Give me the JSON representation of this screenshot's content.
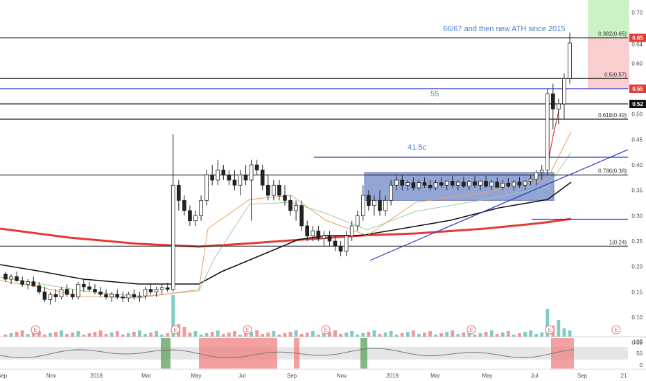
{
  "chart_data": {
    "type": "candlestick",
    "title": "",
    "ylim": [
      0.05,
      0.72
    ],
    "y_ticks": [
      "0.70",
      "0.65",
      "0.64",
      "0.60",
      "0.55",
      "0.52",
      "0.50",
      "0.45",
      "0.40",
      "0.35",
      "0.30",
      "0.25",
      "0.20",
      "0.15",
      "0.10",
      "0.05"
    ],
    "x_ticks": [
      "Sep",
      "Nov",
      "2018",
      "Mar",
      "May",
      "Jul",
      "Sep",
      "Nov",
      "2019",
      "Mar",
      "May",
      "Jul",
      "Sep",
      "21"
    ],
    "price_badges": [
      {
        "label": "0.65",
        "value": 0.65,
        "color": "#e53935"
      },
      {
        "label": "0.55",
        "value": 0.55,
        "color": "#e53935"
      },
      {
        "label": "0.52",
        "value": 0.52,
        "color": "#111111"
      }
    ],
    "fib_levels": [
      {
        "label": "0.382(0.65)",
        "value": 0.65
      },
      {
        "label": "0.5(0.57)",
        "value": 0.57
      },
      {
        "label": "0.618(0.49)",
        "value": 0.49
      },
      {
        "label": "0.786(0.38)",
        "value": 0.38
      },
      {
        "label": "1(0.24)",
        "value": 0.24
      }
    ],
    "horizontal_lines": [
      {
        "value": 0.65,
        "color": "#222222"
      },
      {
        "value": 0.57,
        "color": "#222222"
      },
      {
        "value": 0.55,
        "color": "#2a32c8"
      },
      {
        "value": 0.52,
        "color": "#222222"
      },
      {
        "value": 0.49,
        "color": "#222222"
      },
      {
        "value": 0.38,
        "color": "#222222"
      },
      {
        "value": 0.24,
        "color": "#222222"
      }
    ],
    "annotations": [
      {
        "text": "66/67 and then new ATH since 2015",
        "color": "#4a7bd0"
      },
      {
        "text": "55",
        "color": "#4a7bd0"
      },
      {
        "text": "41.5c",
        "color": "#4a7bd0"
      }
    ],
    "earnings_markers": [
      "E",
      "E",
      "E",
      "E",
      "E",
      "E",
      "E"
    ],
    "oscillator_ticks": [
      "100",
      "50",
      "0"
    ],
    "candles": [
      {
        "o": 0.185,
        "h": 0.19,
        "l": 0.17,
        "c": 0.175
      },
      {
        "o": 0.175,
        "h": 0.185,
        "l": 0.165,
        "c": 0.18
      },
      {
        "o": 0.18,
        "h": 0.19,
        "l": 0.17,
        "c": 0.172
      },
      {
        "o": 0.172,
        "h": 0.18,
        "l": 0.16,
        "c": 0.165
      },
      {
        "o": 0.165,
        "h": 0.175,
        "l": 0.155,
        "c": 0.17
      },
      {
        "o": 0.17,
        "h": 0.18,
        "l": 0.16,
        "c": 0.162
      },
      {
        "o": 0.162,
        "h": 0.17,
        "l": 0.145,
        "c": 0.15
      },
      {
        "o": 0.15,
        "h": 0.16,
        "l": 0.13,
        "c": 0.135
      },
      {
        "o": 0.135,
        "h": 0.15,
        "l": 0.125,
        "c": 0.145
      },
      {
        "o": 0.145,
        "h": 0.155,
        "l": 0.13,
        "c": 0.14
      },
      {
        "o": 0.14,
        "h": 0.16,
        "l": 0.135,
        "c": 0.155
      },
      {
        "o": 0.155,
        "h": 0.165,
        "l": 0.14,
        "c": 0.145
      },
      {
        "o": 0.145,
        "h": 0.155,
        "l": 0.135,
        "c": 0.14
      },
      {
        "o": 0.14,
        "h": 0.17,
        "l": 0.135,
        "c": 0.165
      },
      {
        "o": 0.165,
        "h": 0.175,
        "l": 0.15,
        "c": 0.16
      },
      {
        "o": 0.16,
        "h": 0.17,
        "l": 0.15,
        "c": 0.155
      },
      {
        "o": 0.155,
        "h": 0.165,
        "l": 0.145,
        "c": 0.15
      },
      {
        "o": 0.15,
        "h": 0.16,
        "l": 0.14,
        "c": 0.145
      },
      {
        "o": 0.145,
        "h": 0.155,
        "l": 0.135,
        "c": 0.14
      },
      {
        "o": 0.14,
        "h": 0.15,
        "l": 0.13,
        "c": 0.145
      },
      {
        "o": 0.145,
        "h": 0.155,
        "l": 0.135,
        "c": 0.14
      },
      {
        "o": 0.14,
        "h": 0.15,
        "l": 0.13,
        "c": 0.138
      },
      {
        "o": 0.138,
        "h": 0.15,
        "l": 0.13,
        "c": 0.145
      },
      {
        "o": 0.145,
        "h": 0.155,
        "l": 0.135,
        "c": 0.14
      },
      {
        "o": 0.14,
        "h": 0.15,
        "l": 0.13,
        "c": 0.142
      },
      {
        "o": 0.142,
        "h": 0.16,
        "l": 0.135,
        "c": 0.155
      },
      {
        "o": 0.155,
        "h": 0.165,
        "l": 0.145,
        "c": 0.15
      },
      {
        "o": 0.15,
        "h": 0.16,
        "l": 0.14,
        "c": 0.155
      },
      {
        "o": 0.155,
        "h": 0.165,
        "l": 0.145,
        "c": 0.158
      },
      {
        "o": 0.158,
        "h": 0.168,
        "l": 0.15,
        "c": 0.155
      },
      {
        "o": 0.155,
        "h": 0.46,
        "l": 0.15,
        "c": 0.36
      },
      {
        "o": 0.36,
        "h": 0.37,
        "l": 0.31,
        "c": 0.33
      },
      {
        "o": 0.33,
        "h": 0.34,
        "l": 0.3,
        "c": 0.31
      },
      {
        "o": 0.31,
        "h": 0.32,
        "l": 0.28,
        "c": 0.29
      },
      {
        "o": 0.29,
        "h": 0.31,
        "l": 0.28,
        "c": 0.3
      },
      {
        "o": 0.3,
        "h": 0.34,
        "l": 0.29,
        "c": 0.33
      },
      {
        "o": 0.33,
        "h": 0.39,
        "l": 0.32,
        "c": 0.38
      },
      {
        "o": 0.38,
        "h": 0.4,
        "l": 0.36,
        "c": 0.37
      },
      {
        "o": 0.37,
        "h": 0.41,
        "l": 0.36,
        "c": 0.39
      },
      {
        "o": 0.39,
        "h": 0.4,
        "l": 0.37,
        "c": 0.38
      },
      {
        "o": 0.38,
        "h": 0.39,
        "l": 0.36,
        "c": 0.37
      },
      {
        "o": 0.37,
        "h": 0.39,
        "l": 0.35,
        "c": 0.36
      },
      {
        "o": 0.36,
        "h": 0.39,
        "l": 0.34,
        "c": 0.38
      },
      {
        "o": 0.38,
        "h": 0.4,
        "l": 0.36,
        "c": 0.37
      },
      {
        "o": 0.37,
        "h": 0.41,
        "l": 0.29,
        "c": 0.4
      },
      {
        "o": 0.4,
        "h": 0.41,
        "l": 0.38,
        "c": 0.39
      },
      {
        "o": 0.39,
        "h": 0.4,
        "l": 0.35,
        "c": 0.36
      },
      {
        "o": 0.36,
        "h": 0.38,
        "l": 0.33,
        "c": 0.34
      },
      {
        "o": 0.34,
        "h": 0.37,
        "l": 0.33,
        "c": 0.36
      },
      {
        "o": 0.36,
        "h": 0.37,
        "l": 0.33,
        "c": 0.34
      },
      {
        "o": 0.34,
        "h": 0.36,
        "l": 0.32,
        "c": 0.33
      },
      {
        "o": 0.33,
        "h": 0.34,
        "l": 0.3,
        "c": 0.31
      },
      {
        "o": 0.31,
        "h": 0.33,
        "l": 0.29,
        "c": 0.32
      },
      {
        "o": 0.32,
        "h": 0.33,
        "l": 0.27,
        "c": 0.28
      },
      {
        "o": 0.28,
        "h": 0.29,
        "l": 0.25,
        "c": 0.26
      },
      {
        "o": 0.26,
        "h": 0.28,
        "l": 0.25,
        "c": 0.27
      },
      {
        "o": 0.27,
        "h": 0.28,
        "l": 0.25,
        "c": 0.255
      },
      {
        "o": 0.255,
        "h": 0.27,
        "l": 0.24,
        "c": 0.26
      },
      {
        "o": 0.26,
        "h": 0.27,
        "l": 0.24,
        "c": 0.25
      },
      {
        "o": 0.25,
        "h": 0.26,
        "l": 0.23,
        "c": 0.24
      },
      {
        "o": 0.24,
        "h": 0.25,
        "l": 0.22,
        "c": 0.23
      },
      {
        "o": 0.23,
        "h": 0.27,
        "l": 0.22,
        "c": 0.26
      },
      {
        "o": 0.26,
        "h": 0.29,
        "l": 0.25,
        "c": 0.28
      },
      {
        "o": 0.28,
        "h": 0.31,
        "l": 0.27,
        "c": 0.3
      },
      {
        "o": 0.3,
        "h": 0.36,
        "l": 0.29,
        "c": 0.34
      },
      {
        "o": 0.34,
        "h": 0.35,
        "l": 0.31,
        "c": 0.32
      },
      {
        "o": 0.32,
        "h": 0.34,
        "l": 0.3,
        "c": 0.33
      },
      {
        "o": 0.33,
        "h": 0.35,
        "l": 0.3,
        "c": 0.31
      },
      {
        "o": 0.31,
        "h": 0.34,
        "l": 0.3,
        "c": 0.33
      },
      {
        "o": 0.33,
        "h": 0.37,
        "l": 0.32,
        "c": 0.36
      },
      {
        "o": 0.36,
        "h": 0.38,
        "l": 0.35,
        "c": 0.37
      },
      {
        "o": 0.37,
        "h": 0.38,
        "l": 0.35,
        "c": 0.36
      },
      {
        "o": 0.36,
        "h": 0.37,
        "l": 0.35,
        "c": 0.365
      },
      {
        "o": 0.365,
        "h": 0.375,
        "l": 0.35,
        "c": 0.355
      },
      {
        "o": 0.355,
        "h": 0.37,
        "l": 0.35,
        "c": 0.365
      },
      {
        "o": 0.365,
        "h": 0.375,
        "l": 0.355,
        "c": 0.36
      },
      {
        "o": 0.36,
        "h": 0.37,
        "l": 0.35,
        "c": 0.355
      },
      {
        "o": 0.355,
        "h": 0.37,
        "l": 0.35,
        "c": 0.365
      },
      {
        "o": 0.365,
        "h": 0.375,
        "l": 0.355,
        "c": 0.36
      },
      {
        "o": 0.36,
        "h": 0.37,
        "l": 0.35,
        "c": 0.368
      },
      {
        "o": 0.368,
        "h": 0.378,
        "l": 0.355,
        "c": 0.36
      },
      {
        "o": 0.36,
        "h": 0.37,
        "l": 0.35,
        "c": 0.366
      },
      {
        "o": 0.366,
        "h": 0.376,
        "l": 0.355,
        "c": 0.358
      },
      {
        "o": 0.358,
        "h": 0.37,
        "l": 0.35,
        "c": 0.367
      },
      {
        "o": 0.367,
        "h": 0.378,
        "l": 0.355,
        "c": 0.36
      },
      {
        "o": 0.36,
        "h": 0.37,
        "l": 0.35,
        "c": 0.368
      },
      {
        "o": 0.368,
        "h": 0.378,
        "l": 0.355,
        "c": 0.358
      },
      {
        "o": 0.358,
        "h": 0.37,
        "l": 0.35,
        "c": 0.366
      },
      {
        "o": 0.366,
        "h": 0.375,
        "l": 0.355,
        "c": 0.356
      },
      {
        "o": 0.356,
        "h": 0.37,
        "l": 0.35,
        "c": 0.364
      },
      {
        "o": 0.364,
        "h": 0.374,
        "l": 0.355,
        "c": 0.358
      },
      {
        "o": 0.358,
        "h": 0.37,
        "l": 0.35,
        "c": 0.366
      },
      {
        "o": 0.366,
        "h": 0.376,
        "l": 0.355,
        "c": 0.36
      },
      {
        "o": 0.36,
        "h": 0.37,
        "l": 0.35,
        "c": 0.368
      },
      {
        "o": 0.368,
        "h": 0.38,
        "l": 0.36,
        "c": 0.372
      },
      {
        "o": 0.372,
        "h": 0.39,
        "l": 0.36,
        "c": 0.385
      },
      {
        "o": 0.385,
        "h": 0.4,
        "l": 0.37,
        "c": 0.39
      },
      {
        "o": 0.39,
        "h": 0.55,
        "l": 0.38,
        "c": 0.54
      },
      {
        "o": 0.54,
        "h": 0.56,
        "l": 0.47,
        "c": 0.51
      },
      {
        "o": 0.51,
        "h": 0.53,
        "l": 0.48,
        "c": 0.52
      },
      {
        "o": 0.52,
        "h": 0.58,
        "l": 0.49,
        "c": 0.57
      },
      {
        "o": 0.57,
        "h": 0.66,
        "l": 0.56,
        "c": 0.64
      }
    ]
  }
}
